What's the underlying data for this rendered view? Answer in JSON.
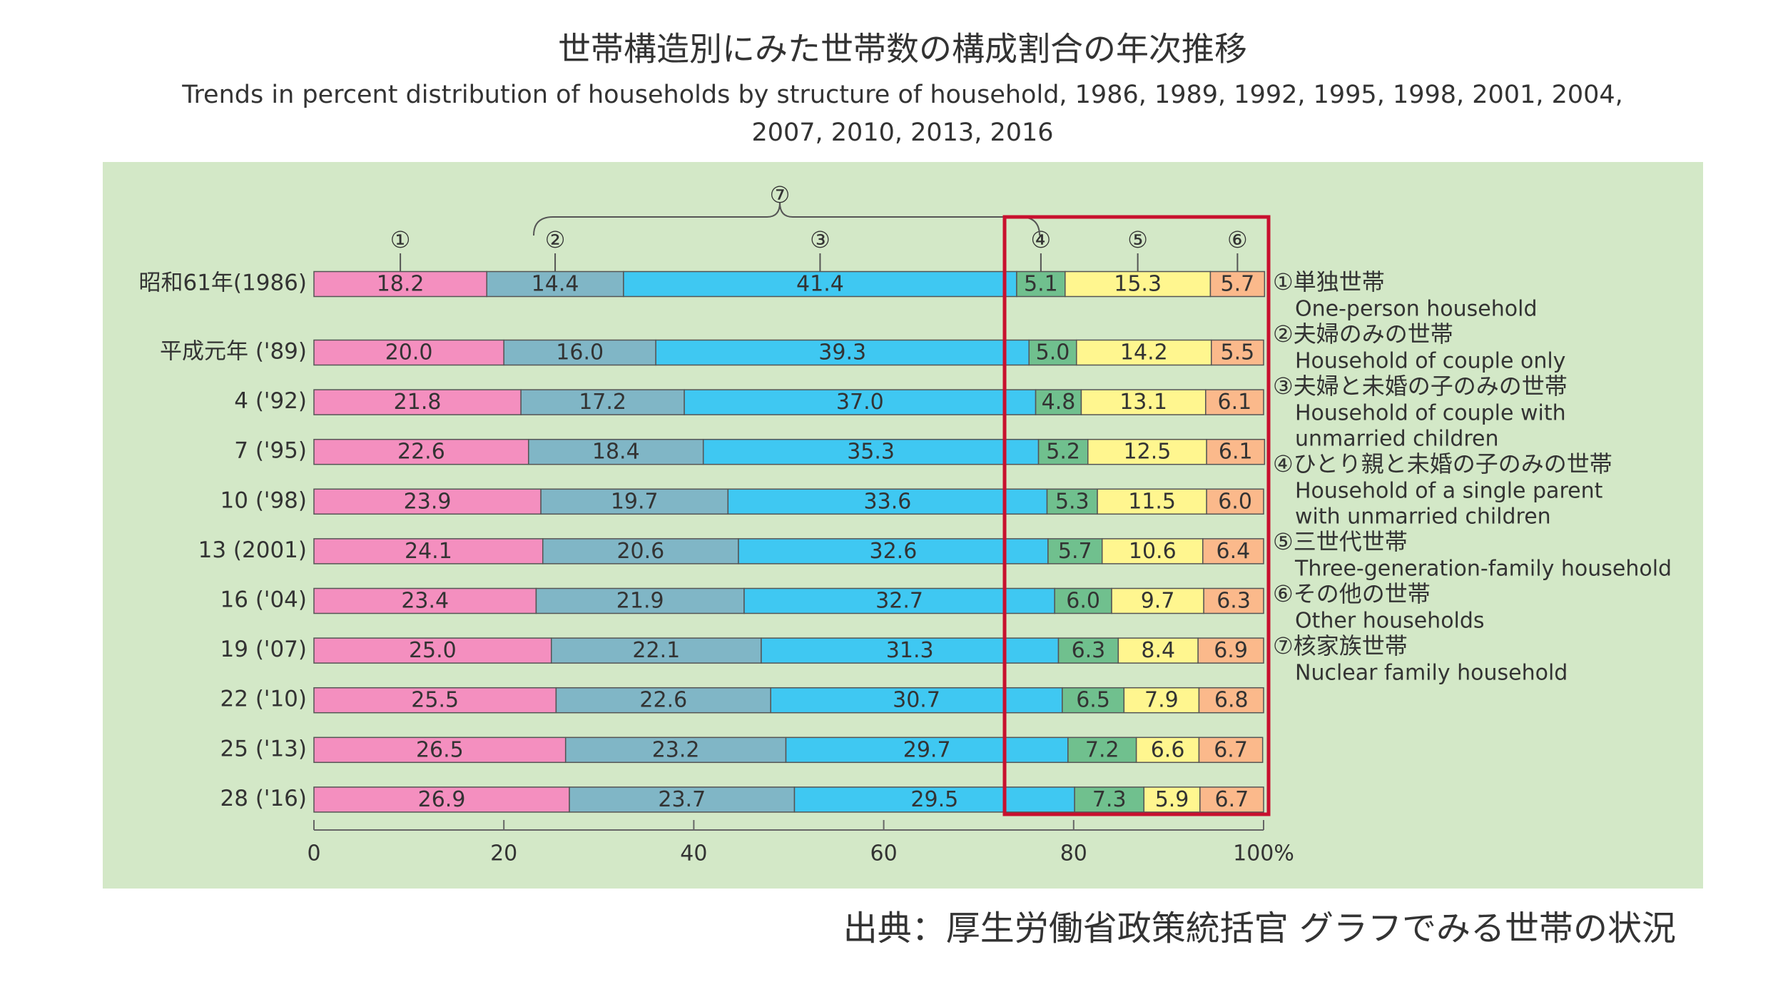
{
  "chart_data": {
    "type": "stacked-bar",
    "title": "世帯構造別にみた世帯数の構成割合の年次推移",
    "subtitle": [
      "Trends in percent distribution of households by structure of household, 1986, 1989, 1992, 1995, 1998, 2001, 2004,",
      "2007, 2010, 2013, 2016"
    ],
    "categories": [
      "昭和61年(1986)",
      "平成元年 ('89)",
      "4 ('92)",
      "7 ('95)",
      "10 ('98)",
      "13 (2001)",
      "16 ('04)",
      "19 ('07)",
      "22 ('10)",
      "25 ('13)",
      "28 ('16)"
    ],
    "series": [
      {
        "marker": "①",
        "name": "①単独世帯",
        "name_en": [
          "One-person household"
        ],
        "color": "#f48fbf",
        "values": [
          18.2,
          20.0,
          21.8,
          22.6,
          23.9,
          24.1,
          23.4,
          25.0,
          25.5,
          26.5,
          26.9
        ],
        "value_labels": [
          "18.2",
          "20.0",
          "21.8",
          "22.6",
          "23.9",
          "24.1",
          "23.4",
          "25.0",
          "25.5",
          "26.5",
          "26.9"
        ]
      },
      {
        "marker": "②",
        "name": "②夫婦のみの世帯",
        "name_en": [
          "Household of couple only"
        ],
        "color": "#80b6c6",
        "values": [
          14.4,
          16.0,
          17.2,
          18.4,
          19.7,
          20.6,
          21.9,
          22.1,
          22.6,
          23.2,
          23.7
        ],
        "value_labels": [
          "14.4",
          "16.0",
          "17.2",
          "18.4",
          "19.7",
          "20.6",
          "21.9",
          "22.1",
          "22.6",
          "23.2",
          "23.7"
        ]
      },
      {
        "marker": "③",
        "name": "③夫婦と未婚の子のみの世帯",
        "name_en": [
          "Household of couple with",
          "unmarried children"
        ],
        "color": "#3fc8f2",
        "values": [
          41.4,
          39.3,
          37.0,
          35.3,
          33.6,
          32.6,
          32.7,
          31.3,
          30.7,
          29.7,
          29.5
        ],
        "value_labels": [
          "41.4",
          "39.3",
          "37.0",
          "35.3",
          "33.6",
          "32.6",
          "32.7",
          "31.3",
          "30.7",
          "29.7",
          "29.5"
        ]
      },
      {
        "marker": "④",
        "name": "④ひとり親と未婚の子のみの世帯",
        "name_en": [
          "Household of a single parent",
          "with unmarried children"
        ],
        "color": "#70c08e",
        "values": [
          5.1,
          5.0,
          4.8,
          5.2,
          5.3,
          5.7,
          6.0,
          6.3,
          6.5,
          7.2,
          7.3
        ],
        "value_labels": [
          "5.1",
          "5.0",
          "4.8",
          "5.2",
          "5.3",
          "5.7",
          "6.0",
          "6.3",
          "6.5",
          "7.2",
          "7.3"
        ]
      },
      {
        "marker": "⑤",
        "name": "⑤三世代世帯",
        "name_en": [
          "Three-generation-family household"
        ],
        "color": "#fff68f",
        "values": [
          15.3,
          14.2,
          13.1,
          12.5,
          11.5,
          10.6,
          9.7,
          8.4,
          7.9,
          6.6,
          5.9
        ],
        "value_labels": [
          "15.3",
          "14.2",
          "13.1",
          "12.5",
          "11.5",
          "10.6",
          "9.7",
          "8.4",
          "7.9",
          "6.6",
          "5.9"
        ]
      },
      {
        "marker": "⑥",
        "name": "⑥その他の世帯",
        "name_en": [
          "Other households"
        ],
        "color": "#fbb98b",
        "values": [
          5.7,
          5.5,
          6.1,
          6.1,
          6.0,
          6.4,
          6.3,
          6.9,
          6.8,
          6.7,
          6.7
        ],
        "value_labels": [
          "5.7",
          "5.5",
          "6.1",
          "6.1",
          "6.0",
          "6.4",
          "6.3",
          "6.9",
          "6.8",
          "6.7",
          "6.7"
        ]
      }
    ],
    "group": {
      "marker": "⑦",
      "name": "⑦核家族世帯",
      "name_en": [
        "Nuclear family household"
      ]
    },
    "xlim": [
      0,
      100
    ],
    "xticks": [
      0,
      20,
      40,
      60,
      80,
      {
        "value": 100,
        "label": "100%"
      }
    ],
    "source": "出典：厚生労働省政策統括官 グラフでみる世帯の状況"
  }
}
